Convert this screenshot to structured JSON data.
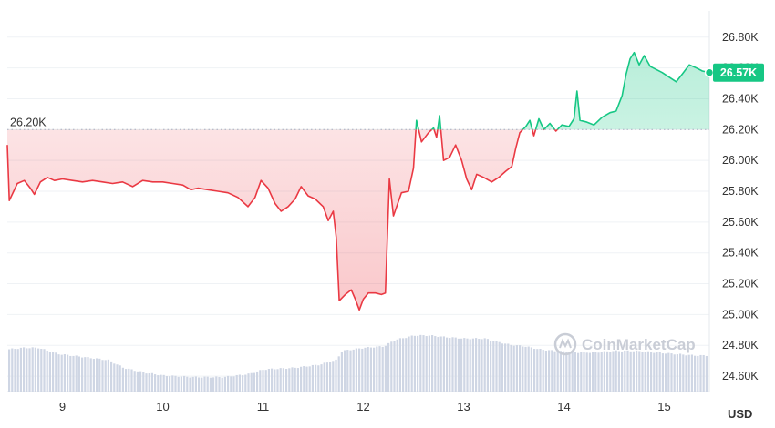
{
  "chart_data": {
    "type": "line",
    "currency_label": "USD",
    "watermark": "CoinMarketCap",
    "baseline": {
      "value": 26200,
      "label": "26.20K"
    },
    "current": {
      "value": 26570,
      "label": "26.57K"
    },
    "x_range": [
      8.45,
      15.45
    ],
    "ylim": [
      24500,
      26970
    ],
    "y_ticks": [
      {
        "value": 26800,
        "label": "26.80K"
      },
      {
        "value": 26600,
        "label": "26.60K"
      },
      {
        "value": 26400,
        "label": "26.40K"
      },
      {
        "value": 26200,
        "label": "26.20K"
      },
      {
        "value": 26000,
        "label": "26.00K"
      },
      {
        "value": 25800,
        "label": "25.80K"
      },
      {
        "value": 25600,
        "label": "25.60K"
      },
      {
        "value": 25400,
        "label": "25.40K"
      },
      {
        "value": 25200,
        "label": "25.20K"
      },
      {
        "value": 25000,
        "label": "25.00K"
      },
      {
        "value": 24800,
        "label": "24.80K"
      },
      {
        "value": 24600,
        "label": "24.60K"
      }
    ],
    "x_ticks": [
      {
        "value": 9,
        "label": "9"
      },
      {
        "value": 10,
        "label": "10"
      },
      {
        "value": 11,
        "label": "11"
      },
      {
        "value": 12,
        "label": "12"
      },
      {
        "value": 13,
        "label": "13"
      },
      {
        "value": 14,
        "label": "14"
      },
      {
        "value": 15,
        "label": "15"
      }
    ],
    "colors": {
      "up": "#16c784",
      "down": "#ea3943",
      "volume": "#cfd6e4",
      "grid": "#eff2f5"
    },
    "price_series": [
      [
        8.45,
        26100
      ],
      [
        8.47,
        25740
      ],
      [
        8.55,
        25850
      ],
      [
        8.62,
        25870
      ],
      [
        8.68,
        25820
      ],
      [
        8.72,
        25780
      ],
      [
        8.78,
        25860
      ],
      [
        8.85,
        25890
      ],
      [
        8.92,
        25870
      ],
      [
        9.0,
        25880
      ],
      [
        9.1,
        25870
      ],
      [
        9.2,
        25860
      ],
      [
        9.3,
        25870
      ],
      [
        9.4,
        25860
      ],
      [
        9.5,
        25850
      ],
      [
        9.6,
        25860
      ],
      [
        9.7,
        25830
      ],
      [
        9.8,
        25870
      ],
      [
        9.9,
        25860
      ],
      [
        10.0,
        25860
      ],
      [
        10.1,
        25850
      ],
      [
        10.2,
        25840
      ],
      [
        10.28,
        25810
      ],
      [
        10.35,
        25820
      ],
      [
        10.45,
        25810
      ],
      [
        10.55,
        25800
      ],
      [
        10.65,
        25790
      ],
      [
        10.75,
        25760
      ],
      [
        10.85,
        25700
      ],
      [
        10.92,
        25760
      ],
      [
        10.98,
        25870
      ],
      [
        11.05,
        25820
      ],
      [
        11.12,
        25720
      ],
      [
        11.18,
        25670
      ],
      [
        11.25,
        25700
      ],
      [
        11.32,
        25750
      ],
      [
        11.38,
        25830
      ],
      [
        11.45,
        25770
      ],
      [
        11.52,
        25750
      ],
      [
        11.6,
        25700
      ],
      [
        11.65,
        25610
      ],
      [
        11.7,
        25670
      ],
      [
        11.73,
        25500
      ],
      [
        11.76,
        25090
      ],
      [
        11.82,
        25130
      ],
      [
        11.88,
        25160
      ],
      [
        11.92,
        25100
      ],
      [
        11.96,
        25030
      ],
      [
        12.0,
        25100
      ],
      [
        12.05,
        25140
      ],
      [
        12.12,
        25140
      ],
      [
        12.18,
        25130
      ],
      [
        12.22,
        25140
      ],
      [
        12.26,
        25880
      ],
      [
        12.3,
        25640
      ],
      [
        12.38,
        25790
      ],
      [
        12.45,
        25800
      ],
      [
        12.5,
        25950
      ],
      [
        12.53,
        26260
      ],
      [
        12.58,
        26120
      ],
      [
        12.65,
        26180
      ],
      [
        12.7,
        26210
      ],
      [
        12.73,
        26150
      ],
      [
        12.76,
        26290
      ],
      [
        12.8,
        26000
      ],
      [
        12.86,
        26020
      ],
      [
        12.92,
        26100
      ],
      [
        12.98,
        26000
      ],
      [
        13.03,
        25880
      ],
      [
        13.08,
        25810
      ],
      [
        13.13,
        25910
      ],
      [
        13.2,
        25890
      ],
      [
        13.28,
        25860
      ],
      [
        13.35,
        25890
      ],
      [
        13.42,
        25930
      ],
      [
        13.48,
        25960
      ],
      [
        13.52,
        26080
      ],
      [
        13.56,
        26180
      ],
      [
        13.62,
        26220
      ],
      [
        13.66,
        26260
      ],
      [
        13.7,
        26160
      ],
      [
        13.75,
        26270
      ],
      [
        13.8,
        26200
      ],
      [
        13.86,
        26240
      ],
      [
        13.92,
        26190
      ],
      [
        13.98,
        26230
      ],
      [
        14.05,
        26220
      ],
      [
        14.1,
        26270
      ],
      [
        14.13,
        26450
      ],
      [
        14.16,
        26260
      ],
      [
        14.22,
        26250
      ],
      [
        14.3,
        26230
      ],
      [
        14.38,
        26280
      ],
      [
        14.46,
        26310
      ],
      [
        14.52,
        26320
      ],
      [
        14.58,
        26420
      ],
      [
        14.62,
        26560
      ],
      [
        14.66,
        26660
      ],
      [
        14.7,
        26700
      ],
      [
        14.75,
        26620
      ],
      [
        14.8,
        26680
      ],
      [
        14.86,
        26610
      ],
      [
        14.92,
        26590
      ],
      [
        14.98,
        26570
      ],
      [
        15.05,
        26540
      ],
      [
        15.12,
        26510
      ],
      [
        15.18,
        26560
      ],
      [
        15.25,
        26620
      ],
      [
        15.32,
        26600
      ],
      [
        15.38,
        26580
      ],
      [
        15.45,
        26570
      ]
    ],
    "volume_series": [
      [
        8.45,
        24770
      ],
      [
        8.6,
        24780
      ],
      [
        8.75,
        24780
      ],
      [
        8.95,
        24740
      ],
      [
        9.2,
        24720
      ],
      [
        9.45,
        24700
      ],
      [
        9.6,
        24650
      ],
      [
        9.8,
        24620
      ],
      [
        10.0,
        24600
      ],
      [
        10.3,
        24590
      ],
      [
        10.6,
        24590
      ],
      [
        10.85,
        24610
      ],
      [
        11.0,
        24640
      ],
      [
        11.3,
        24650
      ],
      [
        11.55,
        24670
      ],
      [
        11.72,
        24700
      ],
      [
        11.78,
        24760
      ],
      [
        12.0,
        24780
      ],
      [
        12.2,
        24790
      ],
      [
        12.3,
        24830
      ],
      [
        12.5,
        24860
      ],
      [
        12.65,
        24860
      ],
      [
        12.8,
        24850
      ],
      [
        13.0,
        24840
      ],
      [
        13.2,
        24840
      ],
      [
        13.32,
        24820
      ],
      [
        13.45,
        24800
      ],
      [
        13.6,
        24790
      ],
      [
        13.75,
        24770
      ],
      [
        13.9,
        24760
      ],
      [
        14.1,
        24750
      ],
      [
        14.3,
        24750
      ],
      [
        14.5,
        24760
      ],
      [
        14.7,
        24760
      ],
      [
        14.9,
        24750
      ],
      [
        15.1,
        24740
      ],
      [
        15.3,
        24730
      ],
      [
        15.45,
        24730
      ]
    ]
  }
}
